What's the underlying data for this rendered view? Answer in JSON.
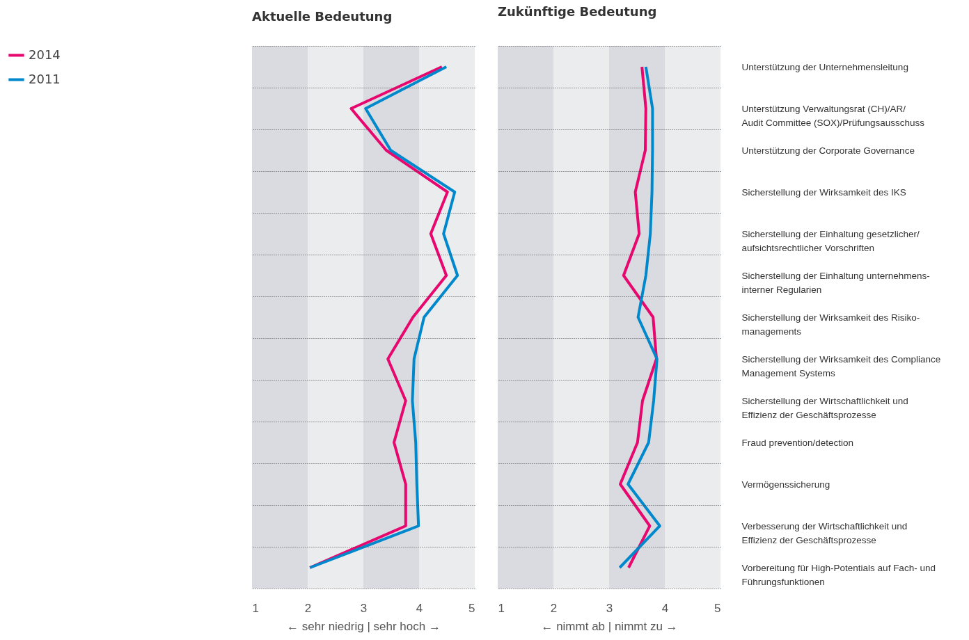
{
  "chart_data": [
    {
      "type": "line",
      "title": "Aktuelle Bedeutung",
      "xlabel": "←      sehr niedrig | sehr hoch      →",
      "categories": [
        null,
        null,
        null,
        null,
        null,
        null,
        null,
        null,
        null,
        null,
        null,
        null,
        null
      ],
      "series": [
        {
          "name": "2014",
          "color": "#e8066f",
          "values": [
            4.41,
            2.78,
            3.41,
            4.51,
            4.21,
            4.49,
            3.89,
            3.44,
            3.76,
            3.55,
            3.76,
            3.76,
            2.04
          ]
        },
        {
          "name": "2011",
          "color": "#0088cc",
          "values": [
            4.49,
            3.04,
            3.49,
            4.64,
            4.44,
            4.69,
            4.09,
            3.91,
            3.88,
            3.94,
            3.96,
            3.99,
            2.04
          ]
        }
      ],
      "xlim": [
        1,
        5
      ],
      "xticks": [
        1,
        2,
        3,
        4,
        5
      ],
      "grid": "y",
      "legend": "top left",
      "tick_labels": "x",
      "orientation": "horizontal",
      "bands": [
        {
          "axis": "x",
          "from": 1,
          "to": 2,
          "color": "#dadbe0"
        },
        {
          "axis": "x",
          "from": 2,
          "to": 3,
          "color": "#ebecee"
        },
        {
          "axis": "x",
          "from": 3,
          "to": 4,
          "color": "#dadbe0"
        },
        {
          "axis": "x",
          "from": 4,
          "to": 5,
          "color": "#ebecee"
        }
      ]
    },
    {
      "type": "line",
      "title": "Zukünftige Bedeutung",
      "xlabel": "←      nimmt ab | nimmt zu      →",
      "categories": [
        "Unterstützung der Unternehmensleitung",
        "Unterstützung Verwaltungsrat (CH)/AR/\nAudit Committee (SOX)/Prüfungsausschuss",
        "Unterstützung der Corporate Governance",
        "Sicherstellung der Wirksamkeit des IKS",
        "Sicherstellung der Einhaltung gesetzlicher/\naufsichtsrechtlicher Vorschriften",
        "Sicherstellung der Einhaltung unternehmens-\ninterner Regularien",
        "Sicherstellung der Wirksamkeit des Risiko-\nmanagements",
        "Sicherstellung der Wirksamkeit des Compliance\nManagement Systems",
        "Sicherstellung der Wirtschaftlichkeit und\nEffizienz der Geschäftsprozesse",
        "Fraud prevention/detection",
        "Vermögenssicherung",
        "Verbesserung der Wirtschaftlichkeit und\nEffizienz der Geschäftsprozesse",
        "Vorbereitung für High-Potentials auf Fach- und\nFührungsfunktionen"
      ],
      "series": [
        {
          "name": "2014",
          "color": "#e8066f",
          "values": [
            3.59,
            3.66,
            3.65,
            3.47,
            3.54,
            3.26,
            3.79,
            3.85,
            3.6,
            3.51,
            3.2,
            3.73,
            3.35
          ]
        },
        {
          "name": "2011",
          "color": "#0088cc",
          "values": [
            3.66,
            3.78,
            3.78,
            3.77,
            3.74,
            3.66,
            3.52,
            3.86,
            3.8,
            3.71,
            3.34,
            3.91,
            3.19
          ]
        }
      ],
      "xlim": [
        1,
        5
      ],
      "xticks": [
        1,
        2,
        3,
        4,
        5
      ],
      "grid": "y",
      "orientation": "horizontal",
      "bands": [
        {
          "axis": "x",
          "from": 1,
          "to": 2,
          "color": "#dadbe0"
        },
        {
          "axis": "x",
          "from": 2,
          "to": 3,
          "color": "#ebecee"
        },
        {
          "axis": "x",
          "from": 3,
          "to": 4,
          "color": "#dadbe0"
        },
        {
          "axis": "x",
          "from": 4,
          "to": 5,
          "color": "#ebecee"
        }
      ]
    }
  ]
}
